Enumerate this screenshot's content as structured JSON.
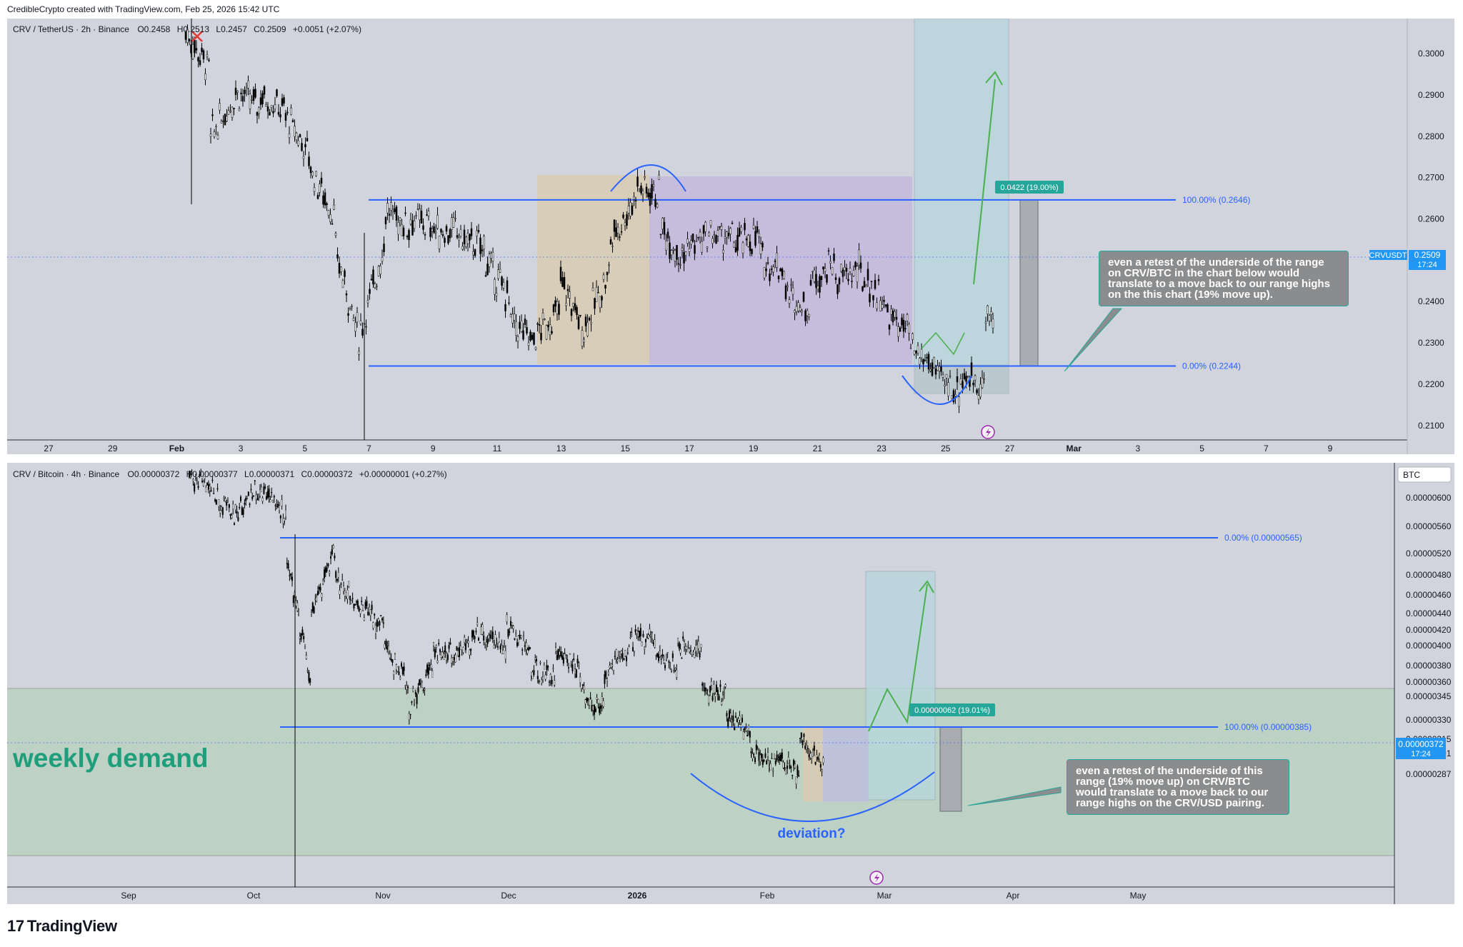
{
  "header": {
    "attribution": "CredibleCrypto created with TradingView.com, Feb 25, 2026 15:42 UTC"
  },
  "brand": {
    "mark": "17",
    "name": "TradingView"
  },
  "chart_data": [
    {
      "type": "candlestick",
      "symbol_line": "CRV / TetherUS · 2h · Binance",
      "ohlc": {
        "o_label": "O",
        "o": "0.2458",
        "h_label": "H",
        "h": "0.2513",
        "l_label": "L",
        "l": "0.2457",
        "c_label": "C",
        "c": "0.2509",
        "change": "+0.0051 (+2.07%)"
      },
      "x_ticks": [
        "27",
        "29",
        "Feb",
        "3",
        "5",
        "7",
        "9",
        "11",
        "13",
        "15",
        "17",
        "19",
        "21",
        "23",
        "25",
        "27",
        "Mar",
        "3",
        "5",
        "7",
        "9"
      ],
      "y_ticks": [
        "0.3000",
        "0.2900",
        "0.2800",
        "0.2700",
        "0.2600",
        "0.2400",
        "0.2300",
        "0.2200",
        "0.2100"
      ],
      "ylim": [
        0.2065,
        0.3085
      ],
      "price_tag": {
        "symbol": "CRVUSDT",
        "value": "0.2509",
        "countdown": "17:24"
      },
      "fib_levels": [
        {
          "label": "100.00% (0.2646)",
          "value": 0.2646
        },
        {
          "label": "0.00% (0.2244)",
          "value": 0.2244
        }
      ],
      "target_label": "0.0422 (19.00%)",
      "price_path": [
        [
          0.305,
          0.296
        ],
        [
          0.28,
          0.29
        ],
        [
          0.291,
          0.287
        ],
        [
          0.29,
          0.286
        ],
        [
          0.285,
          0.275
        ],
        [
          0.272,
          0.26
        ],
        [
          0.252,
          0.23
        ],
        [
          0.233,
          0.255
        ],
        [
          0.262,
          0.258
        ],
        [
          0.26,
          0.258
        ],
        [
          0.257,
          0.257
        ],
        [
          0.255,
          0.253
        ],
        [
          0.25,
          0.24
        ],
        [
          0.235,
          0.23
        ],
        [
          0.232,
          0.238
        ],
        [
          0.245,
          0.232
        ],
        [
          0.235,
          0.248
        ],
        [
          0.255,
          0.265
        ],
        [
          0.268,
          0.266
        ],
        [
          0.258,
          0.25
        ],
        [
          0.253,
          0.256
        ],
        [
          0.256,
          0.255
        ],
        [
          0.254,
          0.256
        ],
        [
          0.25,
          0.248
        ],
        [
          0.242,
          0.238
        ],
        [
          0.245,
          0.25
        ],
        [
          0.245,
          0.248
        ],
        [
          0.246,
          0.24
        ],
        [
          0.237,
          0.232
        ],
        [
          0.228,
          0.224
        ],
        [
          0.222,
          0.218
        ],
        [
          0.222,
          0.22
        ],
        [
          0.235,
          0.24
        ],
        [
          0.248,
          0.251
        ]
      ],
      "note": "even a retest of the underside of the range on CRV/BTC in the chart below would translate to a move back to our range highs on the this chart (19% move up)."
    },
    {
      "type": "candlestick",
      "symbol_line": "CRV / Bitcoin · 4h · Binance",
      "ohlc": {
        "o_label": "O",
        "o": "0.00000372",
        "h_label": "H",
        "h": "0.00000377",
        "l_label": "L",
        "l": "0.00000371",
        "c_label": "C",
        "c": "0.00000372",
        "change": "+0.00000001 (+0.27%)"
      },
      "x_ticks": [
        "Sep",
        "Oct",
        "Nov",
        "Dec",
        "2026",
        "Feb",
        "Mar",
        "Apr",
        "May"
      ],
      "y_ticks": [
        "0.00000600",
        "0.00000560",
        "0.00000520",
        "0.00000480",
        "0.00000460",
        "0.00000440",
        "0.00000420",
        "0.00000400",
        "0.00000380",
        "0.00000360",
        "0.00000345",
        "0.00000330",
        "0.00000315",
        "0.00000301",
        "0.00000287"
      ],
      "currency": "BTC",
      "price_tag": {
        "value": "0.00000372",
        "countdown": "17:24"
      },
      "fib_levels": [
        {
          "label": "0.00% (0.00000565)",
          "value": 5.65e-06
        },
        {
          "label": "100.00% (0.00000385)",
          "value": 3.85e-06
        }
      ],
      "target_label": "0.00000062 (19.01%)",
      "zone_label": "weekly demand",
      "annotation": "deviation?",
      "price_path": [
        [
          6.3,
          6.2
        ],
        [
          6.1,
          5.9
        ],
        [
          6.0,
          6.2
        ],
        [
          6.2,
          5.9
        ],
        [
          5.5,
          4.2
        ],
        [
          4.9,
          5.6
        ],
        [
          5.3,
          5.0
        ],
        [
          5.0,
          4.8
        ],
        [
          4.6,
          4.2
        ],
        [
          4.0,
          4.4
        ],
        [
          4.6,
          4.5
        ],
        [
          4.5,
          4.8
        ],
        [
          4.7,
          4.6
        ],
        [
          4.8,
          4.6
        ],
        [
          4.4,
          4.3
        ],
        [
          4.5,
          4.4
        ],
        [
          4.2,
          3.95
        ],
        [
          4.3,
          4.6
        ],
        [
          4.7,
          4.65
        ],
        [
          4.6,
          4.4
        ],
        [
          4.6,
          4.55
        ],
        [
          4.2,
          4.1
        ],
        [
          3.9,
          3.7
        ],
        [
          3.6,
          3.4
        ],
        [
          3.5,
          3.3
        ],
        [
          3.7,
          3.4
        ],
        [
          3.5,
          3.7
        ]
      ],
      "note": "even a retest of the underside of this range (19% move up) on CRV/BTC would translate to a move back to our range highs on the CRV/USD pairing."
    }
  ]
}
